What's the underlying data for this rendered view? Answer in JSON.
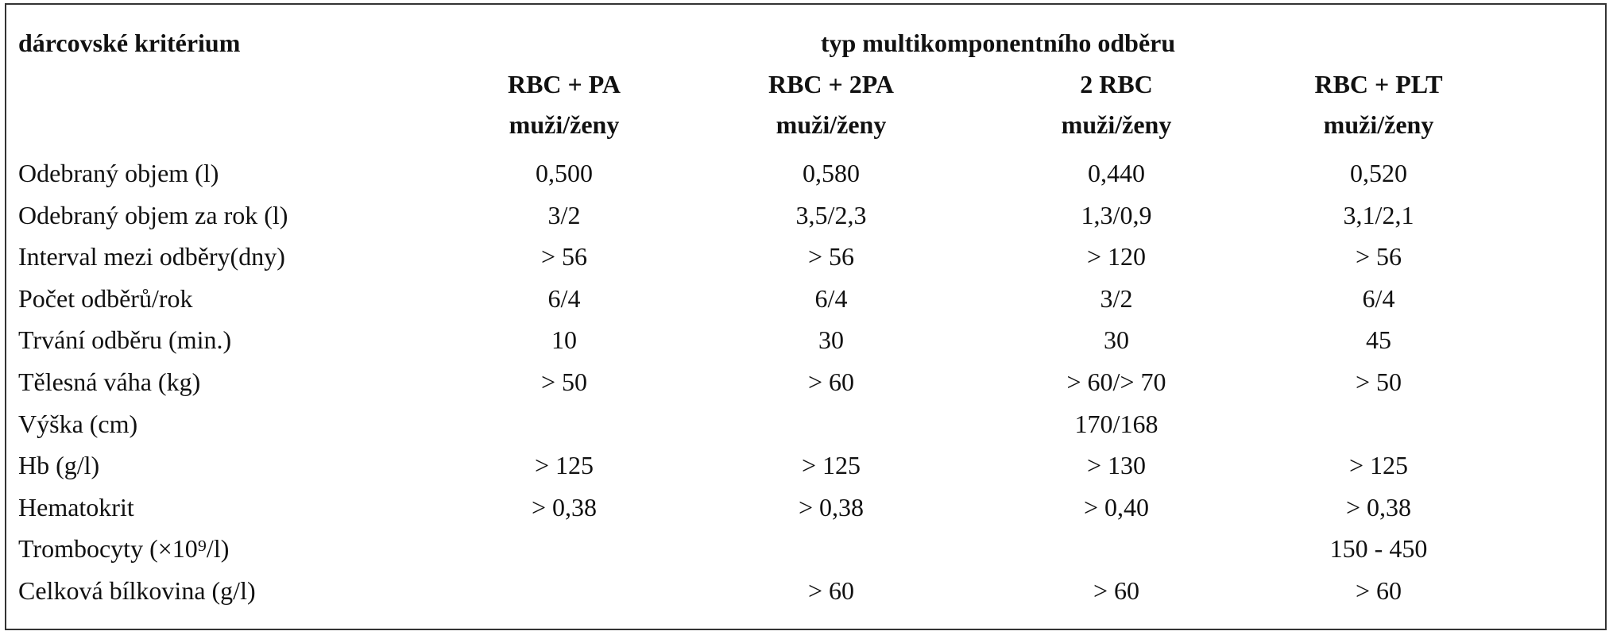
{
  "header": {
    "criterion": "dárcovské kritérium",
    "group": "typ multikomponentního odběru"
  },
  "columns": [
    {
      "name": "RBC + PA",
      "sub": "muži/ženy"
    },
    {
      "name": "RBC + 2PA",
      "sub": "muži/ženy"
    },
    {
      "name": "2 RBC",
      "sub": "muži/ženy"
    },
    {
      "name": "RBC + PLT",
      "sub": "muži/ženy"
    }
  ],
  "rows": [
    {
      "label": "Odebraný objem (l)",
      "values": [
        "0,500",
        "0,580",
        "0,440",
        "0,520"
      ]
    },
    {
      "label": "Odebraný objem za rok (l)",
      "values": [
        "3/2",
        "3,5/2,3",
        "1,3/0,9",
        "3,1/2,1"
      ]
    },
    {
      "label": "Interval mezi odběry(dny)",
      "values": [
        "> 56",
        "> 56",
        "> 120",
        "> 56"
      ]
    },
    {
      "label": "Počet odběrů/rok",
      "values": [
        "6/4",
        "6/4",
        "3/2",
        "6/4"
      ]
    },
    {
      "label": "Trvání odběru (min.)",
      "values": [
        "10",
        "30",
        "30",
        "45"
      ]
    },
    {
      "label": "Tělesná váha (kg)",
      "values": [
        "> 50",
        "> 60",
        "> 60/> 70",
        "> 50"
      ]
    },
    {
      "label": "Výška (cm)",
      "values": [
        null,
        null,
        "170/168",
        null
      ]
    },
    {
      "label": "Hb (g/l)",
      "values": [
        "> 125",
        "> 125",
        "> 130",
        "> 125"
      ]
    },
    {
      "label": "Hematokrit",
      "values": [
        "> 0,38",
        "> 0,38",
        "> 0,40",
        "> 0,38"
      ]
    },
    {
      "label": "Trombocyty (×10⁹/l)",
      "values": [
        null,
        null,
        null,
        "150 - 450"
      ]
    },
    {
      "label": "Celková bílkovina (g/l)",
      "values": [
        null,
        "> 60",
        "> 60",
        "> 60"
      ]
    }
  ]
}
